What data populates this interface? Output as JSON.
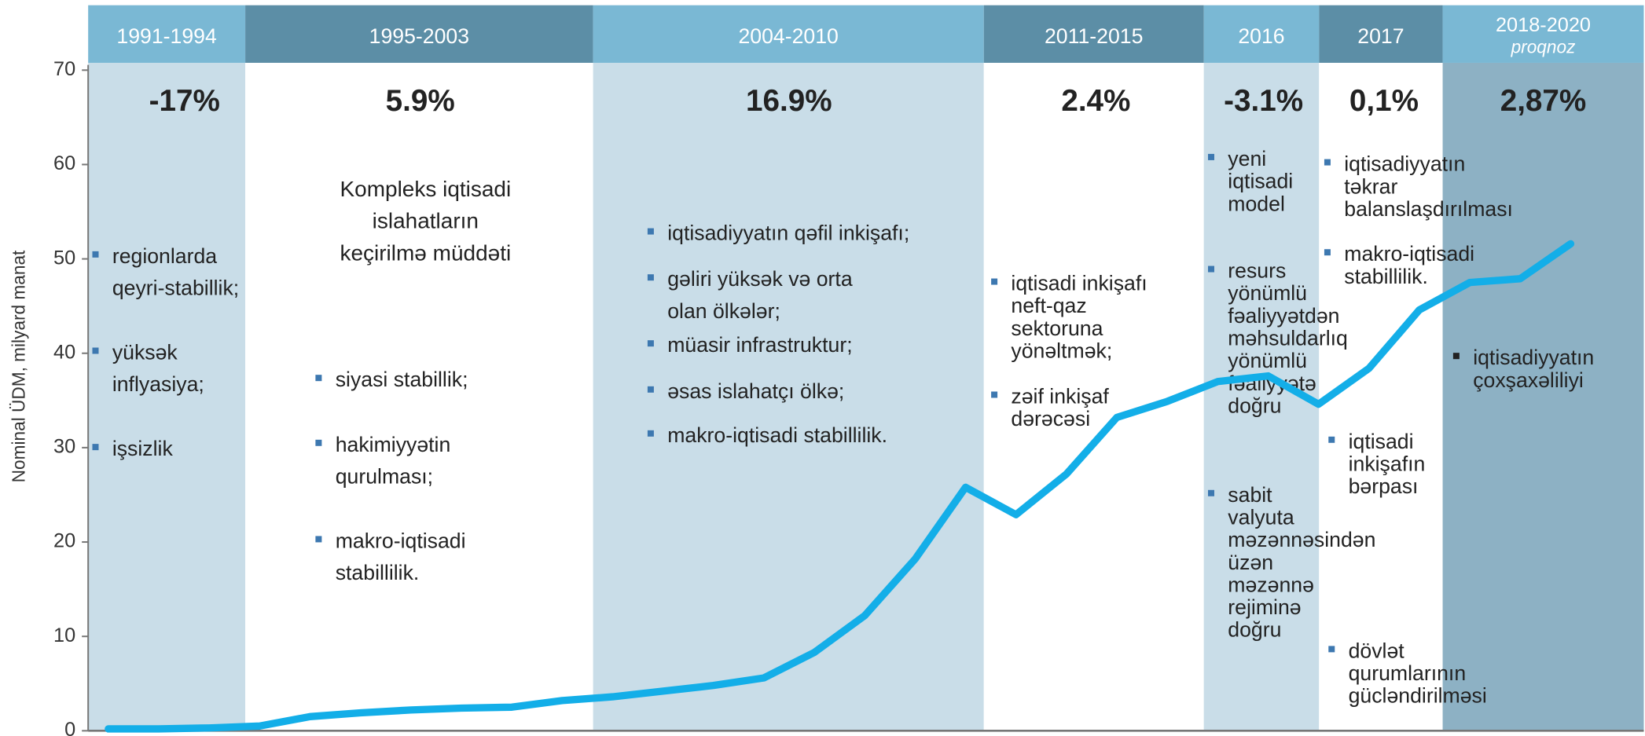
{
  "chart_data": {
    "type": "line",
    "ylabel": "Nominal ÜDM, milyard manat",
    "x": [
      1991,
      1992,
      1993,
      1994,
      1995,
      1996,
      1997,
      1998,
      1999,
      2000,
      2001,
      2002,
      2003,
      2004,
      2005,
      2006,
      2007,
      2008,
      2009,
      2010,
      2011,
      2012,
      2013,
      2014,
      2015,
      2016,
      2017,
      2018,
      2019,
      2020
    ],
    "values": [
      0.2,
      0.2,
      0.3,
      0.5,
      1.5,
      1.9,
      2.2,
      2.4,
      2.5,
      3.2,
      3.6,
      4.2,
      4.8,
      5.6,
      8.3,
      12.2,
      18.2,
      25.8,
      22.9,
      27.2,
      33.2,
      34.9,
      37.0,
      37.6,
      34.6,
      38.4,
      44.6,
      47.5,
      47.9,
      51.6
    ],
    "color": "#13aee8",
    "xlim": [
      1990.6,
      2021.45
    ],
    "ylim": [
      0,
      70
    ],
    "yticks": [
      0,
      10,
      20,
      30,
      40,
      50,
      60,
      70
    ]
  },
  "periods": [
    {
      "label": "1991-1994",
      "growth": "-17%",
      "bullets": [
        [
          "regionlarda",
          "qeyri-stabillik;"
        ],
        [
          "yüksək",
          "inflyasiya;"
        ],
        [
          "işsizlik"
        ]
      ]
    },
    {
      "label": "1995-2003",
      "growth": "5.9%",
      "description": [
        "Kompleks iqtisadi",
        "islahatların",
        "keçirilmə müddəti"
      ],
      "bullets": [
        [
          "siyasi stabillik;"
        ],
        [
          "hakimiyyətin",
          "qurulması;"
        ],
        [
          "makro-iqtisadi",
          "stabillilik."
        ]
      ]
    },
    {
      "label": "2004-2010",
      "growth": "16.9%",
      "bullets": [
        [
          "iqtisadiyyatın qəfil inkişafı;"
        ],
        [
          "gəliri yüksək və orta",
          "olan ölkələr;"
        ],
        [
          "müasir infrastruktur;"
        ],
        [
          "əsas islahatçı ölkə;"
        ],
        [
          "makro-iqtisadi stabillilik."
        ]
      ]
    },
    {
      "label": "2011-2015",
      "growth": "2.4%",
      "bullets": [
        [
          "iqtisadi inkişafı",
          "neft-qaz",
          "sektoruna",
          "yönəltmək;"
        ],
        [
          "zəif inkişaf",
          "dərəcəsi"
        ]
      ]
    },
    {
      "label": "2016",
      "growth": "-3.1%",
      "bullets": [
        [
          "yeni",
          "iqtisadi",
          "model"
        ],
        [
          "resurs",
          "yönümlü",
          "fəaliyyətdən",
          "məhsuldarlıq",
          "yönümlü",
          "fəaliyyətə",
          "doğru"
        ],
        [
          "sabit",
          "valyuta",
          "məzənnəsindən",
          "üzən",
          "məzənnə",
          "rejiminə",
          "doğru"
        ]
      ]
    },
    {
      "label": "2017",
      "growth": "0,1%",
      "bullets": [
        [
          "iqtisadiyyatın",
          "təkrar",
          "balanslaşdırılması"
        ],
        [
          "makro-iqtisadi",
          "stabillilik."
        ],
        [
          "iqtisadi",
          "inkişafın",
          "bərpası"
        ],
        [
          "dövlət",
          "qurumlarının",
          "gücləndirilməsi"
        ]
      ]
    },
    {
      "label": "2018-2020",
      "sublabel": "proqnoz",
      "growth": "2,87%",
      "bullets": [
        [
          "iqtisadiyyatın",
          "çoxşaxəliliyi"
        ]
      ]
    }
  ]
}
